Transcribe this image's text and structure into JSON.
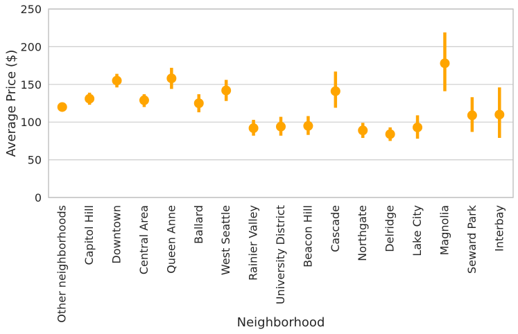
{
  "chart_data": {
    "type": "scatter",
    "title": "",
    "xlabel": "Neighborhood",
    "ylabel": "Average Price ($)",
    "ylim": [
      0,
      250
    ],
    "yticks": [
      0,
      50,
      100,
      150,
      200,
      250
    ],
    "grid": "horizontal",
    "color": "#ffa500",
    "categories": [
      "Other neighborhoods",
      "Capitol Hill",
      "Downtown",
      "Central Area",
      "Queen Anne",
      "Ballard",
      "West Seattle",
      "Rainier Valley",
      "University District",
      "Beacon Hill",
      "Cascade",
      "Northgate",
      "Delridge",
      "Lake City",
      "Magnolia",
      "Seward Park",
      "Interbay"
    ],
    "values": [
      120,
      131,
      155,
      129,
      158,
      125,
      142,
      92,
      94,
      95,
      141,
      89,
      84,
      93,
      178,
      109,
      110
    ],
    "ci_low": [
      114,
      123,
      146,
      120,
      144,
      113,
      128,
      82,
      82,
      83,
      119,
      79,
      75,
      78,
      141,
      87,
      79
    ],
    "ci_high": [
      126,
      139,
      164,
      137,
      172,
      137,
      156,
      103,
      107,
      108,
      167,
      99,
      93,
      109,
      219,
      133,
      146
    ]
  }
}
